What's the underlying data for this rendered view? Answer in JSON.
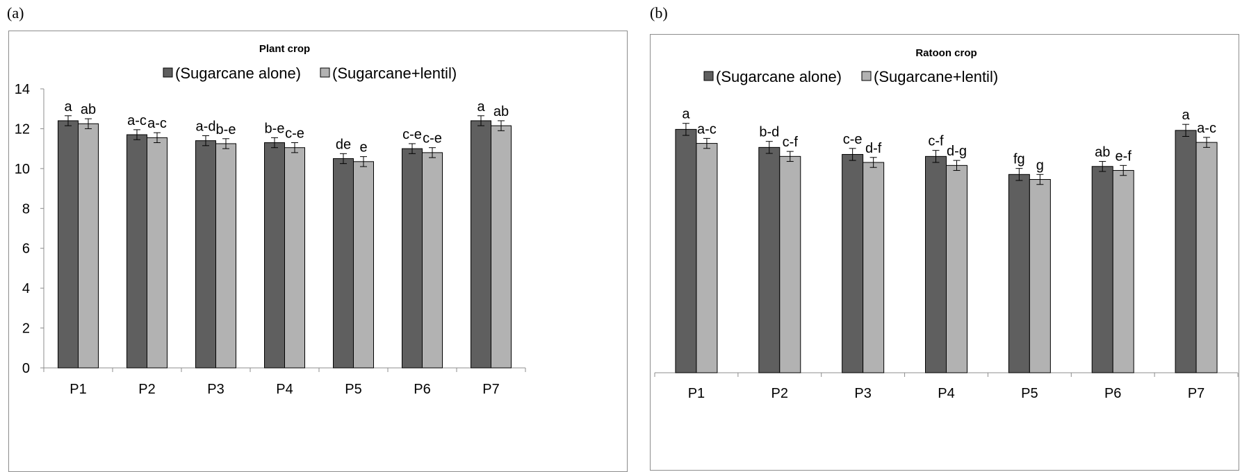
{
  "panels": {
    "a": {
      "label": "(a)"
    },
    "b": {
      "label": "(b)"
    }
  },
  "colors": {
    "sugarcane_alone": "#5f5f5f",
    "sugarcane_lentil": "#b2b2b2",
    "axis": "#8c8c8c"
  },
  "chart_data": [
    {
      "type": "bar",
      "title": "Plant crop",
      "categories": [
        "P1",
        "P2",
        "P3",
        "P4",
        "P5",
        "P6",
        "P7"
      ],
      "series": [
        {
          "name": "(Sugarcane alone)",
          "values": [
            12.4,
            11.7,
            11.4,
            11.3,
            10.5,
            11.0,
            12.4
          ],
          "errors": [
            0.25,
            0.25,
            0.25,
            0.25,
            0.25,
            0.25,
            0.25
          ],
          "letters": [
            "a",
            "a-c",
            "a-d",
            "b-e",
            "de",
            "c-e",
            "a"
          ]
        },
        {
          "name": "(Sugarcane+lentil)",
          "values": [
            12.25,
            11.55,
            11.25,
            11.05,
            10.35,
            10.8,
            12.15
          ],
          "errors": [
            0.25,
            0.25,
            0.25,
            0.25,
            0.25,
            0.25,
            0.25
          ],
          "letters": [
            "ab",
            "a-c",
            "b-e",
            "c-e",
            "e",
            "c-e",
            "ab"
          ]
        }
      ],
      "ylim": [
        0,
        14
      ],
      "yticks": [
        "0",
        "2",
        "4",
        "6",
        "8",
        "10",
        "12",
        "14"
      ],
      "xlabel": "",
      "ylabel": "",
      "legend_position": "top",
      "grid": false
    },
    {
      "type": "bar",
      "title": "Ratoon crop",
      "categories": [
        "P1",
        "P2",
        "P3",
        "P4",
        "P5",
        "P6",
        "P7"
      ],
      "series": [
        {
          "name": "(Sugarcane alone)",
          "values": [
            12.15,
            11.25,
            10.9,
            10.8,
            9.9,
            10.3,
            12.1
          ],
          "errors": [
            0.3,
            0.3,
            0.3,
            0.3,
            0.3,
            0.25,
            0.3
          ],
          "letters": [
            "a",
            "b-d",
            "c-e",
            "c-f",
            "fg",
            "ab",
            "a"
          ]
        },
        {
          "name": "(Sugarcane+lentil)",
          "values": [
            11.45,
            10.8,
            10.5,
            10.35,
            9.65,
            10.1,
            11.5
          ],
          "errors": [
            0.25,
            0.25,
            0.25,
            0.25,
            0.25,
            0.25,
            0.25
          ],
          "letters": [
            "a-c",
            "c-f",
            "d-f",
            "d-g",
            "g",
            "e-f",
            "a-c"
          ]
        }
      ],
      "ylim": [
        0,
        14
      ],
      "yticks": [],
      "xlabel": "",
      "ylabel": "",
      "legend_position": "top",
      "grid": false
    }
  ]
}
